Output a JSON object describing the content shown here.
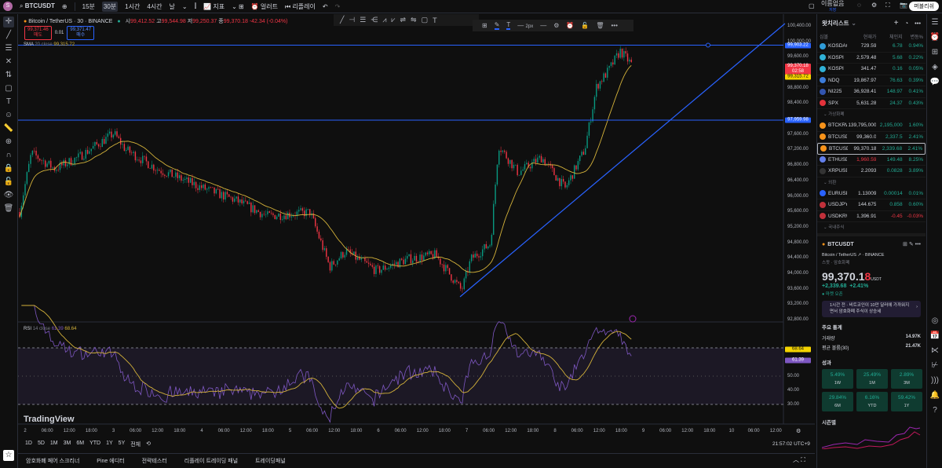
{
  "topbar": {
    "avatar": "S",
    "symbol": "BTCUSDT",
    "intervals": [
      "15분",
      "30분",
      "1시간",
      "4시간",
      "날"
    ],
    "selected_interval": "30분",
    "indicators": "지표",
    "alert": "얼러트",
    "replay": "리플레이",
    "layout_name": "이름없음",
    "layout_sub": "저장",
    "publish": "퍼블리쉬"
  },
  "legend": {
    "title": "Bitcoin / TetherUS · 30 · BINANCE",
    "o_label": "시",
    "o": "99,412.52",
    "h_label": "고",
    "h": "99,544.98",
    "l_label": "저",
    "l": "99,250.37",
    "c_label": "종",
    "c": "99,370.18",
    "change": "-42.34 (-0.04%)",
    "sell_price": "99,371.46",
    "sell_label": "매도",
    "spread": "0.01",
    "buy_price": "99,371.47",
    "buy_label": "매수",
    "sma_label": "SMA",
    "sma_params": "20 close",
    "sma_value": "99,315.72",
    "rsi_label": "RSI",
    "rsi_params": "14 close",
    "rsi_value": "61.39",
    "rsi_ma_value": "68.64"
  },
  "drawing_toolbar": {
    "width_label": "2px"
  },
  "price_axis": {
    "ticks": [
      100400,
      100000,
      99600,
      98800,
      98400,
      97600,
      97200,
      96800,
      96400,
      96000,
      95600,
      95200,
      94800,
      94400,
      94000,
      93600,
      93200,
      92800
    ],
    "tick_labels": [
      "100,400.00",
      "100,000.00",
      "99,600.00",
      "98,800.00",
      "98,400.00",
      "97,600.00",
      "97,200.00",
      "96,800.00",
      "96,400.00",
      "96,000.00",
      "95,600.00",
      "95,200.00",
      "94,800.00",
      "94,400.00",
      "94,000.00",
      "93,600.00",
      "93,200.00",
      "92,800.00"
    ],
    "hline1": "99,903.22",
    "hline2": "97,959.98",
    "last_price": "99,370.18",
    "countdown": "02:58",
    "sma_tag": "99,315.72"
  },
  "rsi_axis": {
    "ticks": [
      50,
      40,
      30
    ],
    "tick_labels": [
      "50.00",
      "40.00",
      "30.00"
    ],
    "rsi_tag": "61.39",
    "ma_tag": "68.64"
  },
  "time_axis": [
    "2",
    "06:00",
    "12:00",
    "18:00",
    "3",
    "06:00",
    "12:00",
    "18:00",
    "4",
    "06:00",
    "12:00",
    "18:00",
    "5",
    "06:00",
    "12:00",
    "18:00",
    "6",
    "06:00",
    "12:00",
    "18:00",
    "7",
    "06:00",
    "12:00",
    "18:00",
    "8",
    "06:00",
    "12:00",
    "18:00",
    "9",
    "06:00",
    "12:00",
    "18:00",
    "10",
    "06:00",
    "12:00"
  ],
  "range_buttons": [
    "1D",
    "5D",
    "1M",
    "3M",
    "6M",
    "YTD",
    "1Y",
    "5Y",
    "전체"
  ],
  "clock": "21:57:02 UTC+9",
  "watermark": "TradingView",
  "bottom_tabs": [
    "암호화폐 페어 스크리너",
    "Pine 에디터",
    "전략테스터",
    "리플레이 트레이딩 패널",
    "트레이딩패널"
  ],
  "watchlist": {
    "title": "왓치리스트",
    "headers": [
      "심볼",
      "현재가",
      "체인지",
      "변동%"
    ],
    "indices": [
      {
        "sym": "KOSDAQ",
        "price": "729.59",
        "chg": "6.78",
        "pct": "0.94%",
        "color": "#2f9bd6"
      },
      {
        "sym": "KOSPI",
        "price": "2,579.48",
        "chg": "5.68",
        "pct": "0.22%",
        "color": "#2fb0d6"
      },
      {
        "sym": "KOSPI",
        "price": "341.47",
        "chg": "0.16",
        "pct": "0.05%",
        "color": "#2fb0d6"
      },
      {
        "sym": "NDQ",
        "price": "19,867.97",
        "chg": "76.63",
        "pct": "0.39%",
        "color": "#3b7bd9"
      },
      {
        "sym": "NI225",
        "price": "36,928.41",
        "chg": "148.97",
        "pct": "0.41%",
        "color": "#3255b0"
      },
      {
        "sym": "SPX",
        "price": "5,631.28",
        "chg": "24.37",
        "pct": "0.43%",
        "color": "#e3323b"
      }
    ],
    "sec_crypto": "가상화폐",
    "crypto": [
      {
        "sym": "BTCKRW",
        "price": "139,795,000",
        "chg": "2,195,000",
        "pct": "1.60%",
        "color": "#f7931a"
      },
      {
        "sym": "BTCUSD",
        "price": "99,360.0",
        "chg": "2,337.5",
        "pct": "2.41%",
        "color": "#f7931a"
      },
      {
        "sym": "BTCUSDT",
        "price": "99,370.18",
        "chg": "2,339.68",
        "pct": "2.41%",
        "color": "#f7931a"
      },
      {
        "sym": "ETHUSD",
        "price": "1,960.59",
        "chg": "149.48",
        "pct": "8.25%",
        "color": "#627eea",
        "neg_price": true
      },
      {
        "sym": "XRPUSD",
        "price": "2.2093",
        "chg": "0.0828",
        "pct": "3.89%",
        "color": "#333"
      }
    ],
    "sec_fx": "외환",
    "fx": [
      {
        "sym": "EURUSD",
        "price": "1.13009",
        "chg": "0.00014",
        "pct": "0.01%",
        "color": "#2962ff"
      },
      {
        "sym": "USDJPY",
        "price": "144.675",
        "chg": "0.858",
        "pct": "0.60%",
        "color": "#c0303a"
      },
      {
        "sym": "USDKRW",
        "price": "1,396.91",
        "chg": "-0.45",
        "pct": "-0.03%",
        "color": "#c0303a",
        "neg": true
      }
    ],
    "sec_kr": "국내주식"
  },
  "details": {
    "symbol": "BTCUSDT",
    "name": "Bitcoin / TetherUS",
    "exchange": "BINANCE",
    "type": "스팟 · 암호화폐",
    "price_main": "99,370.1",
    "price_last": "8",
    "currency": "USDT",
    "change": "+2,339.68",
    "change_pct": "+2.41%",
    "market": "마켓 오픈",
    "news": "1시간 전 · 비트코인이 10만 달러에 가까워지면서 암호화폐 주식이 상승세",
    "stats_title": "주요 통계",
    "volume_label": "거래량",
    "volume": "14.97K",
    "avgvol_label": "평균 볼륨(30)",
    "avgvol": "21.47K",
    "perf_title": "성과",
    "perf": [
      {
        "v": "5.49%",
        "l": "1W"
      },
      {
        "v": "25.49%",
        "l": "1M"
      },
      {
        "v": "2.89%",
        "l": "3M"
      },
      {
        "v": "29.84%",
        "l": "6M"
      },
      {
        "v": "6.16%",
        "l": "YTD"
      },
      {
        "v": "59.42%",
        "l": "1Y"
      }
    ],
    "seasonal_title": "시즌별"
  },
  "colors": {
    "up": "#089981",
    "down": "#f23645",
    "sma": "#d4b23a",
    "rsi": "#7e57c2",
    "drawing": "#2962ff"
  }
}
